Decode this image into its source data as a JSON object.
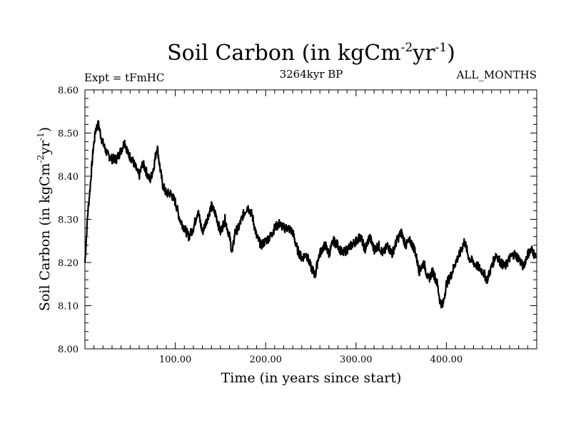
{
  "chart_data": {
    "type": "line",
    "title": "Soil Carbon (in kgCm",
    "title_sup1": "-2",
    "title_mid": "yr",
    "title_sup2": "-1",
    "title_end": ")",
    "experiment": "Expt = tFmHC",
    "period": "3264kyr BP",
    "months": "ALL_MONTHS",
    "xlabel": "Time (in years since start)",
    "ylabel": "Soil Carbon (in kgCm",
    "ylabel_sup1": "-2",
    "ylabel_mid": "yr",
    "ylabel_sup2": "-1",
    "ylabel_end": ")",
    "xlim": [
      0,
      500
    ],
    "ylim": [
      8.0,
      8.6
    ],
    "xticks": [
      100,
      200,
      300,
      400
    ],
    "xtick_labels": [
      "100.00",
      "200.00",
      "300.00",
      "400.00"
    ],
    "yticks": [
      8.0,
      8.1,
      8.2,
      8.3,
      8.4,
      8.5,
      8.6
    ],
    "ytick_labels": [
      "8.00",
      "8.10",
      "8.20",
      "8.30",
      "8.40",
      "8.50",
      "8.60"
    ],
    "grid": false,
    "line_color": "#000000",
    "series": [
      {
        "x": [
          0,
          3,
          6,
          9,
          12,
          15,
          18,
          21,
          25,
          30,
          35,
          40,
          44,
          48,
          52,
          56,
          60,
          64,
          68,
          72,
          76,
          80,
          83,
          86,
          90,
          95,
          100,
          105,
          110,
          115,
          120,
          125,
          130,
          135,
          140,
          145,
          150,
          155,
          160,
          163,
          166,
          170,
          175,
          180,
          185,
          190,
          195,
          200,
          205,
          210,
          215,
          220,
          225,
          230,
          235,
          240,
          245,
          250,
          255,
          258,
          262,
          266,
          270,
          275,
          280,
          285,
          290,
          295,
          300,
          305,
          310,
          315,
          320,
          325,
          330,
          335,
          340,
          345,
          350,
          355,
          360,
          365,
          370,
          375,
          380,
          385,
          390,
          393,
          396,
          400,
          405,
          410,
          415,
          420,
          425,
          430,
          435,
          440,
          445,
          450,
          455,
          460,
          465,
          470,
          475,
          480,
          485,
          490,
          495,
          499
        ],
        "y": [
          8.2,
          8.31,
          8.38,
          8.46,
          8.51,
          8.52,
          8.49,
          8.47,
          8.45,
          8.44,
          8.44,
          8.46,
          8.48,
          8.45,
          8.44,
          8.42,
          8.4,
          8.43,
          8.41,
          8.39,
          8.42,
          8.47,
          8.42,
          8.38,
          8.36,
          8.36,
          8.34,
          8.3,
          8.28,
          8.26,
          8.28,
          8.32,
          8.27,
          8.3,
          8.33,
          8.31,
          8.27,
          8.3,
          8.26,
          8.22,
          8.27,
          8.28,
          8.31,
          8.33,
          8.31,
          8.26,
          8.24,
          8.25,
          8.26,
          8.28,
          8.29,
          8.28,
          8.28,
          8.27,
          8.23,
          8.21,
          8.22,
          8.19,
          8.17,
          8.21,
          8.23,
          8.24,
          8.22,
          8.25,
          8.24,
          8.22,
          8.23,
          8.24,
          8.25,
          8.26,
          8.23,
          8.26,
          8.23,
          8.24,
          8.22,
          8.24,
          8.22,
          8.25,
          8.27,
          8.24,
          8.25,
          8.23,
          8.18,
          8.2,
          8.16,
          8.18,
          8.15,
          8.11,
          8.1,
          8.15,
          8.17,
          8.2,
          8.22,
          8.25,
          8.21,
          8.2,
          8.19,
          8.18,
          8.16,
          8.19,
          8.22,
          8.2,
          8.19,
          8.21,
          8.22,
          8.21,
          8.19,
          8.22,
          8.23,
          8.21
        ]
      }
    ]
  }
}
